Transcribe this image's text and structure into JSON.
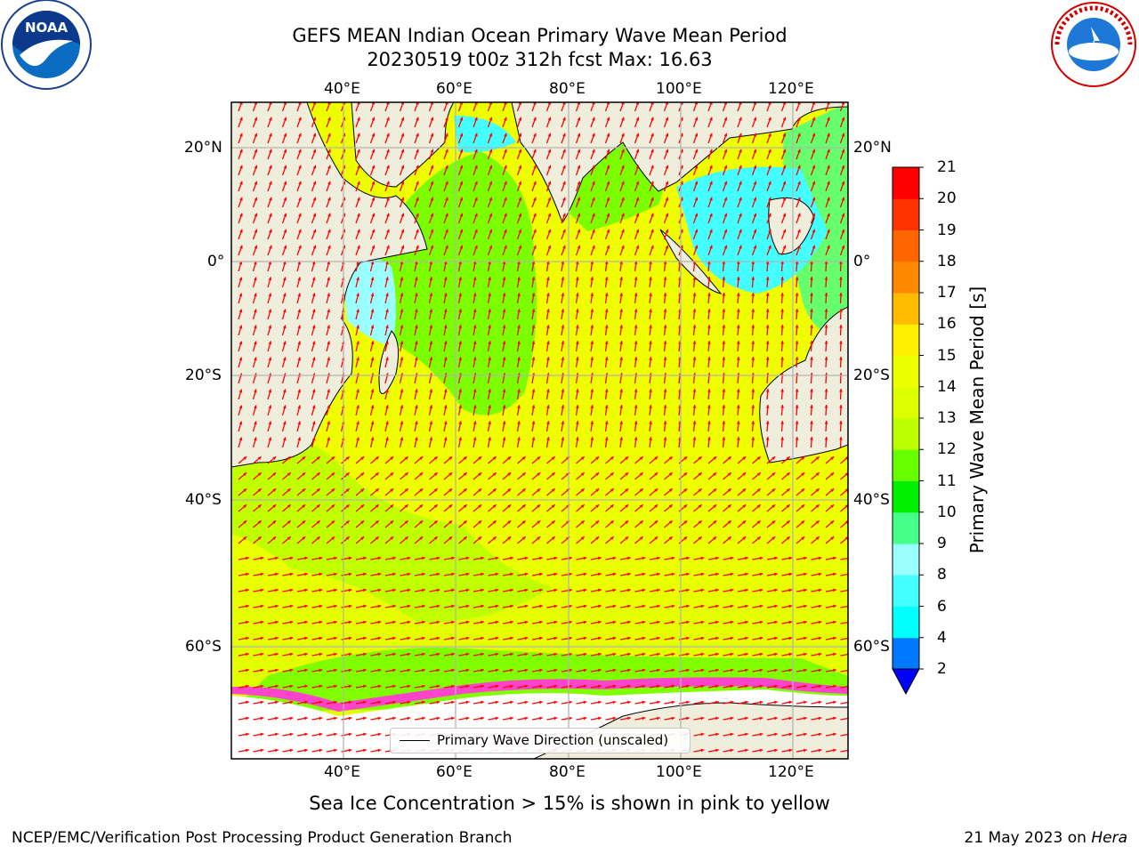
{
  "title": {
    "line1": "GEFS MEAN Indian Ocean Primary Wave Mean Period",
    "line2": "20230519 t00z 312h fcst   Max: 16.63"
  },
  "axes": {
    "top_lon_labels": [
      "40°E",
      "60°E",
      "80°E",
      "100°E",
      "120°E"
    ],
    "bottom_lon_labels": [
      "40°E",
      "60°E",
      "80°E",
      "100°E",
      "120°E"
    ],
    "left_lat_labels": [
      "20°N",
      "0°",
      "20°S",
      "40°S",
      "60°S"
    ],
    "right_lat_labels": [
      "20°N",
      "0°",
      "20°S",
      "40°S",
      "60°S"
    ]
  },
  "map": {
    "colors": {
      "land": "#efeedd",
      "ice_free_white": "#ffffff",
      "grid": "#b4b4b4",
      "arrow": "#ff0000",
      "sea_ice": "#ff44cc"
    }
  },
  "legend": {
    "label": "Primary Wave Direction (unscaled)"
  },
  "colorbar": {
    "label": "Primary Wave Mean Period [s]",
    "ticks": [
      "2",
      "4",
      "6",
      "8",
      "9",
      "10",
      "11",
      "12",
      "13",
      "14",
      "15",
      "16",
      "17",
      "18",
      "19",
      "20",
      "21"
    ],
    "colors": [
      "#0077ff",
      "#00ffff",
      "#44ffff",
      "#99ffff",
      "#44ff88",
      "#00ee00",
      "#66ff00",
      "#bbff00",
      "#ddff00",
      "#eeff00",
      "#ffee00",
      "#ffbb00",
      "#ff8800",
      "#ff6600",
      "#ff3300",
      "#ff0000"
    ],
    "under_color": "#0000ff"
  },
  "caption": "Sea Ice Concentration > 15% is shown in pink to yellow",
  "footer": {
    "left": "NCEP/EMC/Verification Post Processing Product Generation Branch",
    "date": "21 May 2023 on",
    "machine": "Hera"
  },
  "logos": {
    "left": "noaa-logo-icon",
    "left_text": "NOAA",
    "right": "nws-logo-icon",
    "right_text": "NATIONAL WEATHER SERVICE"
  }
}
